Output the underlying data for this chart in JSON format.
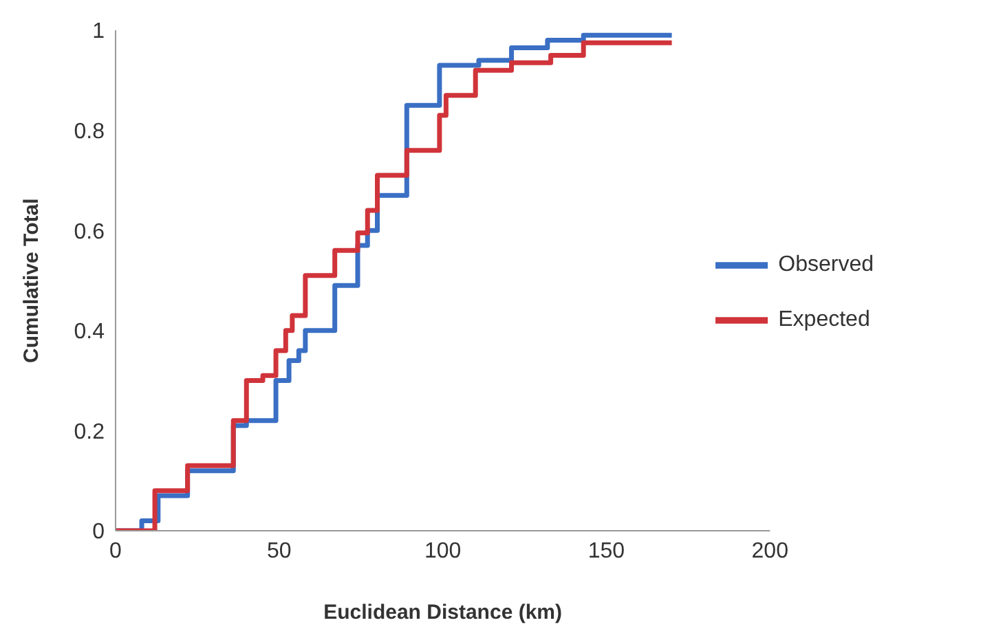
{
  "chart_data": {
    "type": "step",
    "xlabel": "Euclidean Distance (km)",
    "ylabel": "Cumulative Total",
    "xlim": [
      0,
      200
    ],
    "xticks": [
      0,
      50,
      100,
      150,
      200
    ],
    "ylim": [
      0,
      1
    ],
    "yticks": [
      0,
      0.2,
      0.4,
      0.6,
      0.8,
      1
    ],
    "grid": false,
    "legend": "right",
    "marker": "none",
    "line_style": "solid",
    "series": [
      {
        "name": "Observed",
        "color": "#3a6fc4",
        "x": [
          0,
          8,
          13,
          22,
          36,
          40,
          49,
          53,
          56,
          58,
          67,
          74,
          77,
          80,
          89,
          99,
          111,
          121,
          132,
          143,
          170
        ],
        "values": [
          0,
          0.02,
          0.07,
          0.12,
          0.21,
          0.22,
          0.3,
          0.34,
          0.36,
          0.4,
          0.49,
          0.57,
          0.6,
          0.67,
          0.85,
          0.93,
          0.94,
          0.965,
          0.98,
          0.99,
          0.99
        ]
      },
      {
        "name": "Expected",
        "color": "#d0343a",
        "x": [
          0,
          12,
          22,
          36,
          40,
          45,
          49,
          52,
          54,
          58,
          67,
          74,
          77,
          80,
          89,
          99,
          101,
          110,
          121,
          133,
          143,
          170
        ],
        "values": [
          0,
          0.08,
          0.13,
          0.22,
          0.3,
          0.31,
          0.36,
          0.4,
          0.43,
          0.51,
          0.56,
          0.595,
          0.64,
          0.71,
          0.76,
          0.83,
          0.87,
          0.92,
          0.935,
          0.95,
          0.975,
          0.975
        ]
      }
    ]
  }
}
